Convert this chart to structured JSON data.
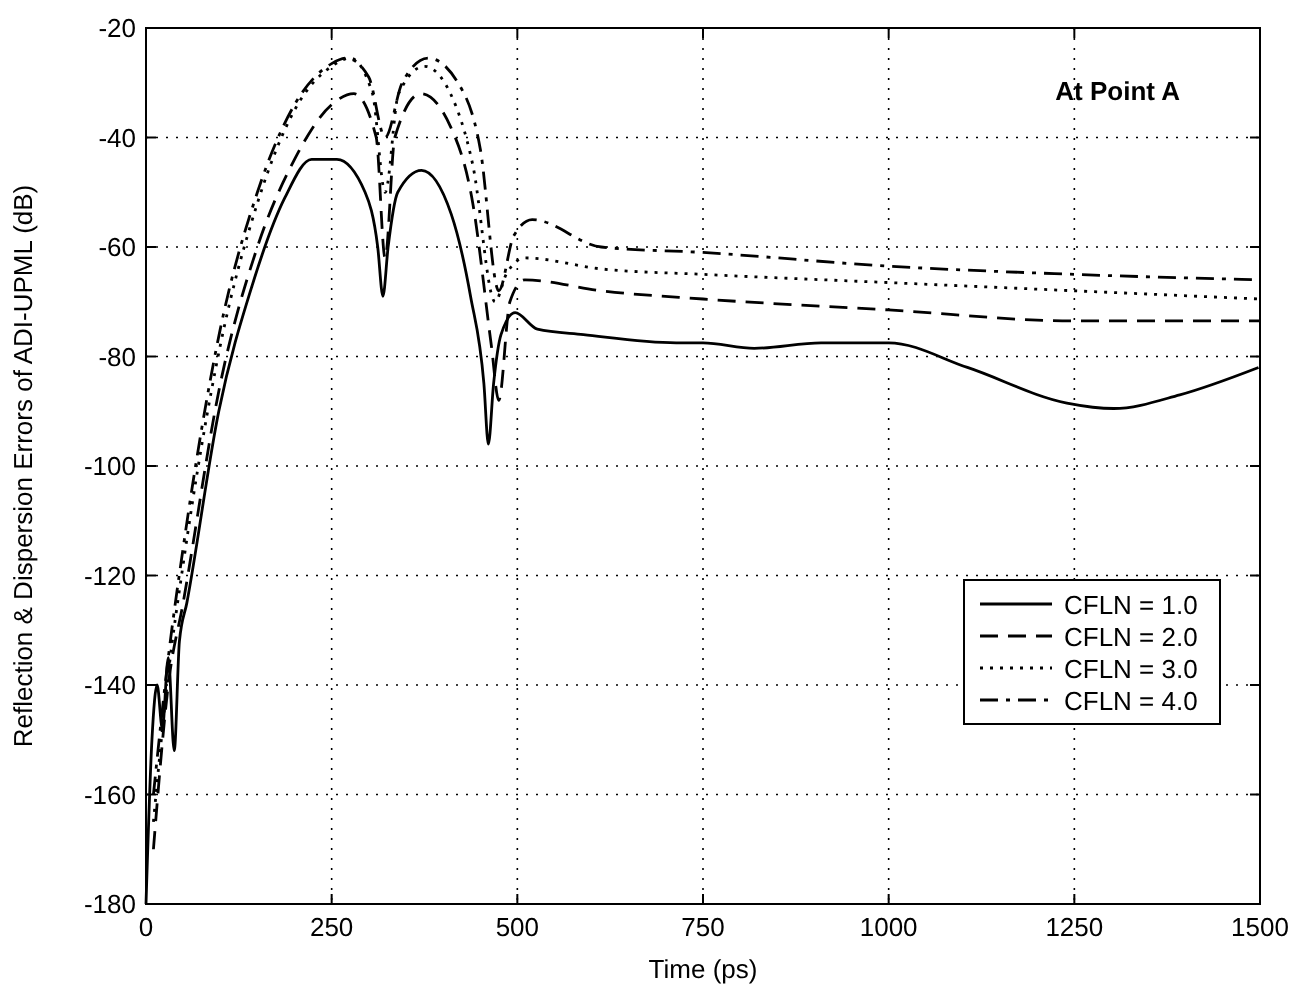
{
  "chart_data": {
    "type": "line",
    "xlabel": "Time (ps)",
    "ylabel": "Reflection & Dispersion Errors of ADI-UPML (dB)",
    "annotations": [
      "At Point A"
    ],
    "xlim": [
      0,
      1500
    ],
    "ylim": [
      -180,
      -20
    ],
    "xticks": [
      0,
      250,
      500,
      750,
      1000,
      1250,
      1500
    ],
    "yticks": [
      -180,
      -160,
      -140,
      -120,
      -100,
      -80,
      -60,
      -40,
      -20
    ],
    "grid": true,
    "legend": "bottom right",
    "series": [
      {
        "name": "CFLN = 1.0",
        "color": "#000000",
        "line_style": "solid",
        "x": [
          0,
          8,
          15,
          22,
          30,
          38,
          45,
          55,
          98,
          143,
          187,
          223,
          257,
          295,
          312,
          319,
          326,
          339,
          371,
          411,
          437,
          455,
          461,
          468,
          478,
          497,
          527,
          589,
          714,
          750,
          819,
          909,
          1000,
          1106,
          1240,
          1303,
          1392,
          1498
        ],
        "values": [
          -180,
          -150,
          -140,
          -148,
          -135,
          -152,
          -132,
          -125,
          -90,
          -67,
          -51,
          -44,
          -44,
          -50,
          -60,
          -69,
          -60,
          -50,
          -46,
          -54,
          -69,
          -85,
          -96,
          -85,
          -76,
          -72,
          -75,
          -76,
          -77.5,
          -77.5,
          -78.5,
          -77.5,
          -77.5,
          -82,
          -88.5,
          -89.5,
          -87,
          -82
        ]
      },
      {
        "name": "CFLN = 2.0",
        "color": "#000000",
        "line_style": "dashed",
        "x": [
          10,
          30,
          50,
          100,
          150,
          200,
          250,
          280,
          310,
          322,
          335,
          370,
          410,
          440,
          465,
          475,
          490,
          510,
          613,
          750,
          1000,
          1250,
          1500
        ],
        "values": [
          -170,
          -140,
          -125,
          -85,
          -60,
          -44,
          -34,
          -32,
          -40,
          -62,
          -40,
          -32,
          -38,
          -52,
          -78,
          -88,
          -70,
          -66,
          -68,
          -69.5,
          -71.5,
          -73.5,
          -73.5
        ]
      },
      {
        "name": "CFLN = 3.0",
        "color": "#000000",
        "line_style": "dotted",
        "x": [
          10,
          30,
          50,
          100,
          150,
          200,
          250,
          275,
          305,
          322,
          340,
          375,
          410,
          440,
          470,
          485,
          510,
          613,
          750,
          1000,
          1250,
          1500
        ],
        "values": [
          -165,
          -138,
          -118,
          -78,
          -52,
          -35,
          -27,
          -25.5,
          -32,
          -50,
          -32,
          -27,
          -32,
          -45,
          -70,
          -65,
          -62,
          -64,
          -65,
          -66.5,
          -68,
          -69.5
        ]
      },
      {
        "name": "CFLN = 4.0",
        "color": "#000000",
        "line_style": "dashdot",
        "x": [
          10,
          30,
          50,
          100,
          150,
          200,
          250,
          270,
          300,
          322,
          345,
          380,
          420,
          450,
          475,
          495,
          520,
          613,
          750,
          1000,
          1250,
          1500
        ],
        "values": [
          -160,
          -135,
          -115,
          -75,
          -50,
          -34,
          -26.5,
          -25.5,
          -29,
          -40,
          -30,
          -25.5,
          -30,
          -42,
          -68,
          -58,
          -55,
          -60,
          -61,
          -63.5,
          -65,
          -66
        ]
      }
    ]
  }
}
